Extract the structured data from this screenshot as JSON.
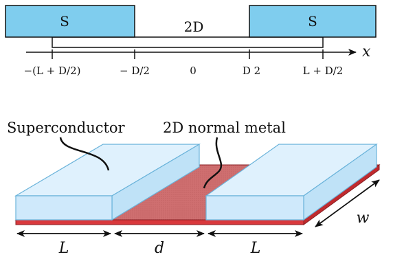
{
  "top_panel": {
    "left_contact_label": "S",
    "right_contact_label": "S",
    "middle_label": "2D",
    "axis_variable": "x",
    "ticks": [
      "−(L + D/2)",
      "− D/2",
      "0",
      "D 2",
      "L + D/2"
    ]
  },
  "bottom_panel": {
    "superconductor_label": "Superconductor",
    "normal_metal_label": "2D normal metal",
    "dimension_L_left": "L",
    "dimension_d": "d",
    "dimension_L_right": "L",
    "dimension_w": "w"
  },
  "colors": {
    "superconductor_fill": "#7fcdee",
    "superconductor_fill_3d": "#cfe9fb",
    "superconductor_top": "#dff1fd",
    "superconductor_edge": "#6ab3da",
    "metal_fill": "#cf6f70",
    "metal_edge": "#8a1f23",
    "metal_strip": "#d9383c",
    "line": "#111111"
  }
}
